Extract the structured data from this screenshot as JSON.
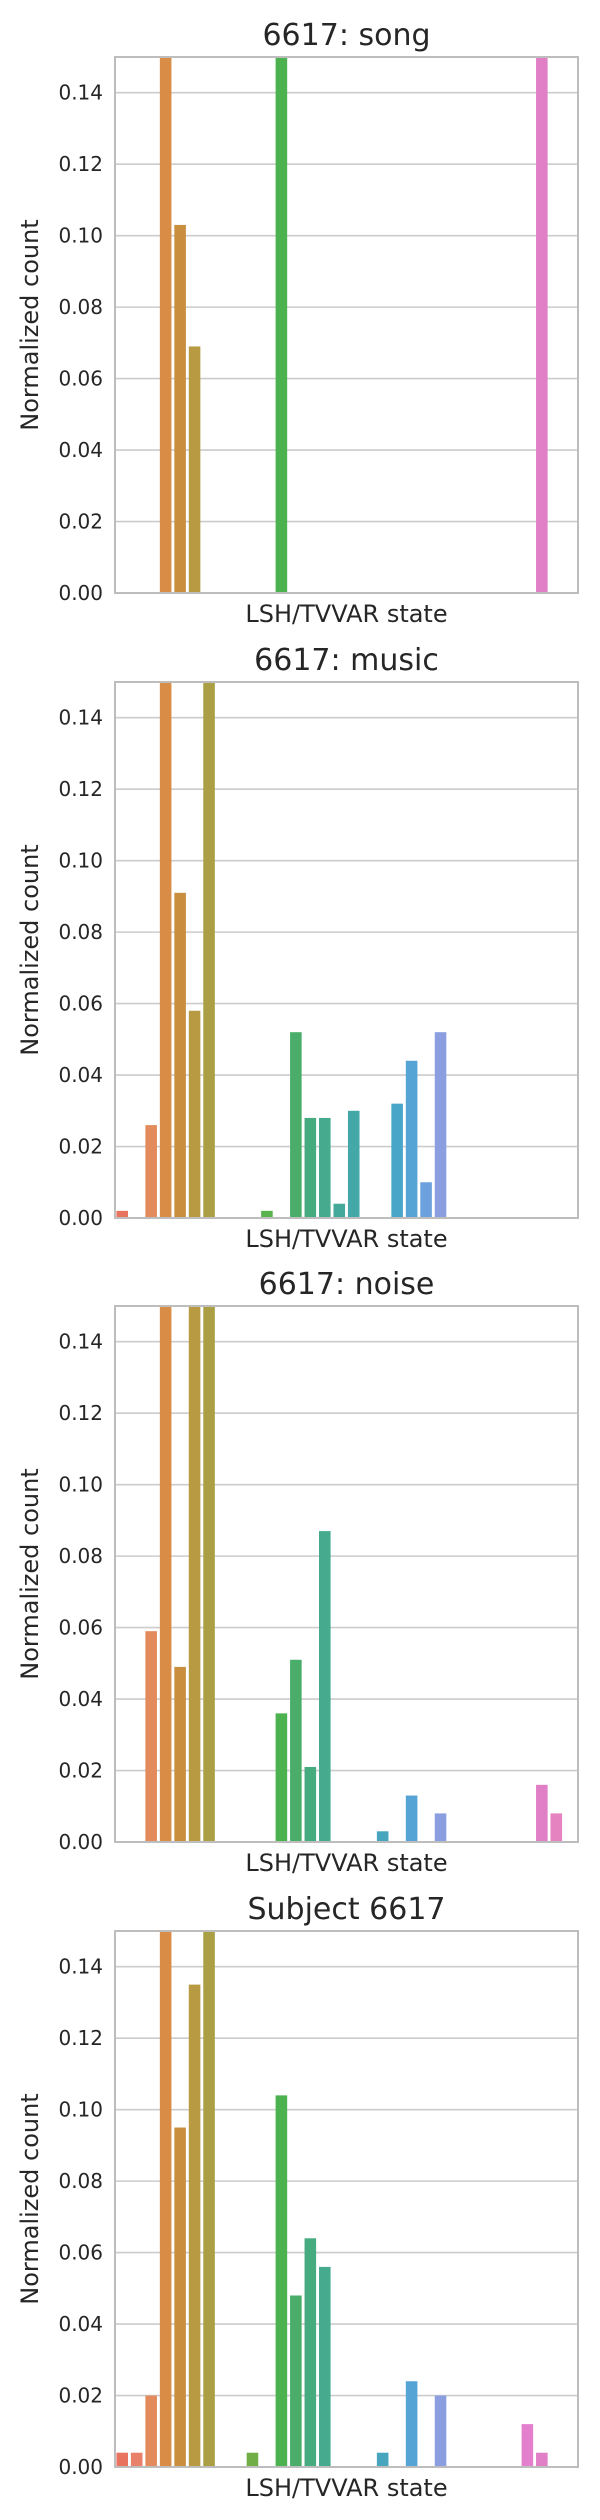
{
  "chart_data": [
    {
      "type": "bar",
      "title": "6617: song",
      "xlabel": "LSH/TVVAR state",
      "ylabel": "Normalized count",
      "ylim": [
        0,
        0.15
      ],
      "yticks": [
        "0.00",
        "0.02",
        "0.04",
        "0.06",
        "0.08",
        "0.10",
        "0.12",
        "0.14"
      ],
      "grid": "horizontal",
      "num_states": 32,
      "bars": [
        {
          "state": 3,
          "value": 0.15
        },
        {
          "state": 4,
          "value": 0.103
        },
        {
          "state": 5,
          "value": 0.069
        },
        {
          "state": 11,
          "value": 0.15
        },
        {
          "state": 29,
          "value": 0.15
        }
      ]
    },
    {
      "type": "bar",
      "title": "6617: music",
      "xlabel": "LSH/TVVAR state",
      "ylabel": "Normalized count",
      "ylim": [
        0,
        0.15
      ],
      "yticks": [
        "0.00",
        "0.02",
        "0.04",
        "0.06",
        "0.08",
        "0.10",
        "0.12",
        "0.14"
      ],
      "grid": "horizontal",
      "num_states": 32,
      "bars": [
        {
          "state": 0,
          "value": 0.002
        },
        {
          "state": 2,
          "value": 0.026
        },
        {
          "state": 3,
          "value": 0.15
        },
        {
          "state": 4,
          "value": 0.091
        },
        {
          "state": 5,
          "value": 0.058
        },
        {
          "state": 6,
          "value": 0.15
        },
        {
          "state": 10,
          "value": 0.002
        },
        {
          "state": 12,
          "value": 0.052
        },
        {
          "state": 13,
          "value": 0.028
        },
        {
          "state": 14,
          "value": 0.028
        },
        {
          "state": 15,
          "value": 0.004
        },
        {
          "state": 16,
          "value": 0.03
        },
        {
          "state": 19,
          "value": 0.032
        },
        {
          "state": 20,
          "value": 0.044
        },
        {
          "state": 21,
          "value": 0.01
        },
        {
          "state": 22,
          "value": 0.052
        }
      ]
    },
    {
      "type": "bar",
      "title": "6617: noise",
      "xlabel": "LSH/TVVAR state",
      "ylabel": "Normalized count",
      "ylim": [
        0,
        0.15
      ],
      "yticks": [
        "0.00",
        "0.02",
        "0.04",
        "0.06",
        "0.08",
        "0.10",
        "0.12",
        "0.14"
      ],
      "grid": "horizontal",
      "num_states": 32,
      "bars": [
        {
          "state": 2,
          "value": 0.059
        },
        {
          "state": 3,
          "value": 0.15
        },
        {
          "state": 4,
          "value": 0.049
        },
        {
          "state": 5,
          "value": 0.15
        },
        {
          "state": 6,
          "value": 0.15
        },
        {
          "state": 11,
          "value": 0.036
        },
        {
          "state": 12,
          "value": 0.051
        },
        {
          "state": 13,
          "value": 0.021
        },
        {
          "state": 14,
          "value": 0.087
        },
        {
          "state": 18,
          "value": 0.003
        },
        {
          "state": 20,
          "value": 0.013
        },
        {
          "state": 22,
          "value": 0.008
        },
        {
          "state": 29,
          "value": 0.016
        },
        {
          "state": 30,
          "value": 0.008
        }
      ]
    },
    {
      "type": "bar",
      "title": "Subject 6617",
      "xlabel": "LSH/TVVAR state",
      "ylabel": "Normalized count",
      "ylim": [
        0,
        0.15
      ],
      "yticks": [
        "0.00",
        "0.02",
        "0.04",
        "0.06",
        "0.08",
        "0.10",
        "0.12",
        "0.14"
      ],
      "grid": "horizontal",
      "num_states": 32,
      "bars": [
        {
          "state": 0,
          "value": 0.004
        },
        {
          "state": 1,
          "value": 0.004
        },
        {
          "state": 2,
          "value": 0.02
        },
        {
          "state": 3,
          "value": 0.15
        },
        {
          "state": 4,
          "value": 0.095
        },
        {
          "state": 5,
          "value": 0.135
        },
        {
          "state": 6,
          "value": 0.15
        },
        {
          "state": 9,
          "value": 0.004
        },
        {
          "state": 11,
          "value": 0.104
        },
        {
          "state": 12,
          "value": 0.048
        },
        {
          "state": 13,
          "value": 0.064
        },
        {
          "state": 14,
          "value": 0.056
        },
        {
          "state": 18,
          "value": 0.004
        },
        {
          "state": 20,
          "value": 0.024
        },
        {
          "state": 22,
          "value": 0.02
        },
        {
          "state": 28,
          "value": 0.012
        },
        {
          "state": 29,
          "value": 0.004
        }
      ]
    }
  ],
  "colors": {
    "grid": "#cccccc",
    "frame": "#bdbdbd",
    "text": "#262626",
    "palette": [
      "#e8745f",
      "#e8806a",
      "#e38b5c",
      "#d98c45",
      "#c98f3f",
      "#b79a42",
      "#ab9f46",
      "#9ea64b",
      "#8aab48",
      "#72ae46",
      "#58b34d",
      "#4bb24f",
      "#4aae6a",
      "#47ab80",
      "#45aa8e",
      "#44a99b",
      "#44a7a8",
      "#45a6b3",
      "#47a6be",
      "#49a6c9",
      "#55a4d5",
      "#6ca1dd",
      "#8a9ee0",
      "#a198e3",
      "#b691e3",
      "#c98ae0",
      "#d985da",
      "#e383d4",
      "#e47fcd",
      "#e07fc6",
      "#e582c0",
      "#e58ab9"
    ]
  }
}
